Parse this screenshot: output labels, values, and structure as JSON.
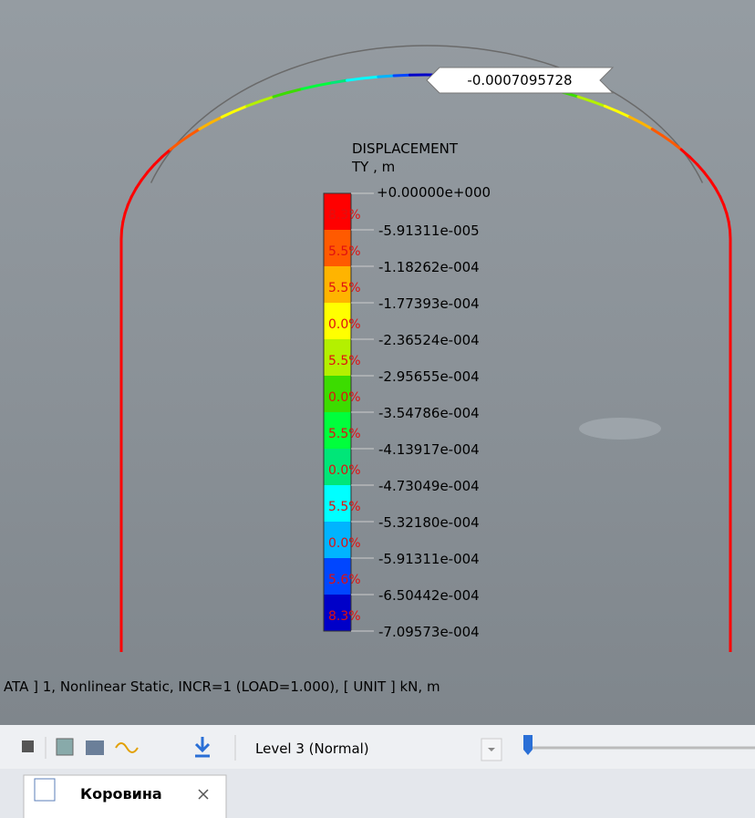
{
  "viewport": {
    "callout": "-0.0007095728",
    "status": "ATA ] 1, Nonlinear Static, INCR=1 (LOAD=1.000),  [ UNIT ]  kN, m"
  },
  "legend": {
    "title": "DISPLACEMENT",
    "unit": "TY , m",
    "levels": [
      "+0.00000e+000",
      "-5.91311e-005",
      "-1.18262e-004",
      "-1.77393e-004",
      "-2.36524e-004",
      "-2.95655e-004",
      "-3.54786e-004",
      "-4.13917e-004",
      "-4.73049e-004",
      "-5.32180e-004",
      "-5.91311e-004",
      "-6.50442e-004",
      "-7.09573e-004"
    ],
    "percents": [
      "8.3%",
      "5.5%",
      "5.5%",
      "0.0%",
      "5.5%",
      "0.0%",
      "5.5%",
      "0.0%",
      "5.5%",
      "0.0%",
      "5.6%",
      "8.3%"
    ],
    "colors": [
      "#ff0000",
      "#ff5a00",
      "#ffb400",
      "#ffff00",
      "#b4f000",
      "#3cdc00",
      "#00ff3c",
      "#00e678",
      "#00ffff",
      "#00b4ff",
      "#0046ff",
      "#0000c8"
    ]
  },
  "toolbar": {
    "level": "Level 3 (Normal)"
  },
  "tab": {
    "label": "Коровина"
  }
}
